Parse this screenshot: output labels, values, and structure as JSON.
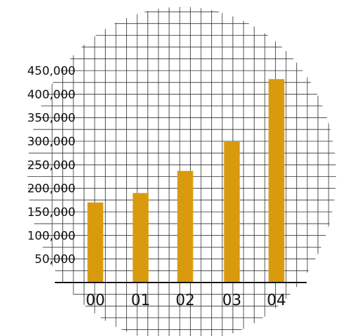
{
  "chart_data": {
    "type": "bar",
    "categories": [
      "00",
      "01",
      "02",
      "03",
      "04"
    ],
    "values": [
      170000,
      190000,
      237000,
      300000,
      432000
    ],
    "y_ticks": [
      "50,000",
      "100,000",
      "150,000",
      "200,000",
      "250,000",
      "300,000",
      "350,000",
      "400,000",
      "450,000"
    ],
    "y_tick_values": [
      50000,
      100000,
      150000,
      200000,
      250000,
      300000,
      350000,
      400000,
      450000
    ],
    "ylim": [
      0,
      450000
    ],
    "grid": true,
    "legend": "none",
    "title": "",
    "xlabel": "",
    "ylabel": "",
    "colors": {
      "bar": "#D99A0E",
      "grid": "#2a2a2a",
      "axis": "#111111"
    }
  }
}
